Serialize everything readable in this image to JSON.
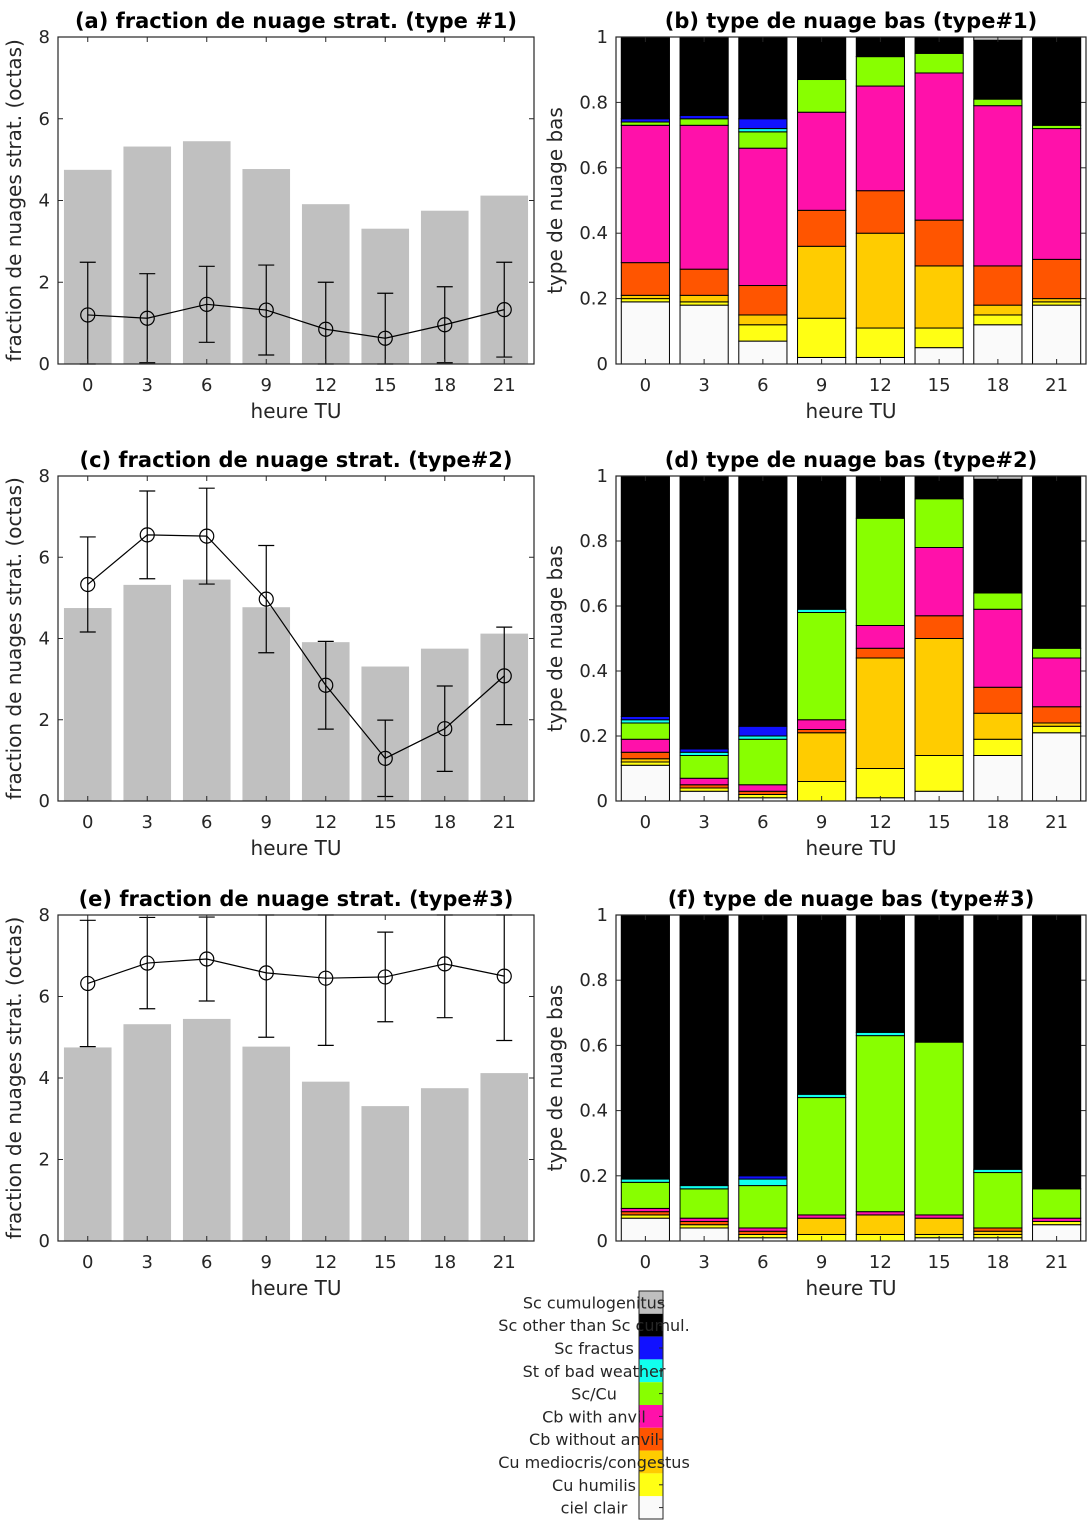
{
  "colors": {
    "bar_gray": "#c0c0c0",
    "line": "#000000",
    "classes": [
      "#fafafa",
      "#ffff14",
      "#ffcc00",
      "#ff5500",
      "#ff11aa",
      "#88ff00",
      "#11ffee",
      "#1111ff",
      "#000000",
      "#bfbfbf"
    ]
  },
  "legend": {
    "labels": [
      "ciel clair",
      "Cu humilis",
      "Cu mediocris/congestus",
      "Cb without anvil",
      "Cb with anvil",
      "Sc/Cu",
      "St of bad weather",
      "Sc fractus",
      "Sc other than Sc cumul.",
      "Sc cumulogenitus"
    ]
  },
  "chart_data": [
    {
      "id": "a",
      "type": "bar",
      "title": "(a) fraction de nuage strat. (type #1)",
      "xlabel": "heure TU",
      "ylabel": "fraction de nuages strat. (octas)",
      "ylim": [
        0,
        8
      ],
      "yticks": [
        0,
        2,
        4,
        6,
        8
      ],
      "categories": [
        "0",
        "3",
        "6",
        "9",
        "12",
        "15",
        "18",
        "21"
      ],
      "values": [
        4.75,
        5.32,
        5.45,
        4.77,
        3.91,
        3.31,
        3.75,
        4.12
      ],
      "line": {
        "values": [
          1.2,
          1.12,
          1.46,
          1.32,
          0.85,
          0.63,
          0.96,
          1.33
        ],
        "err": [
          1.29,
          1.09,
          0.93,
          1.1,
          1.15,
          1.1,
          0.93,
          1.16
        ]
      }
    },
    {
      "id": "b",
      "type": "bar",
      "stacked": true,
      "title": "(b) type de nuage bas (type#1)",
      "xlabel": "heure TU",
      "ylabel": "type de nuage bas",
      "ylim": [
        0,
        1
      ],
      "yticks": [
        0,
        0.2,
        0.4,
        0.6,
        0.8,
        1
      ],
      "categories": [
        "0",
        "3",
        "6",
        "9",
        "12",
        "15",
        "18",
        "21"
      ],
      "fractions": [
        [
          0.19,
          0.01,
          0.01,
          0.1,
          0.42,
          0.01,
          0.0,
          0.01,
          0.25,
          0.0
        ],
        [
          0.18,
          0.01,
          0.02,
          0.08,
          0.44,
          0.02,
          0.0,
          0.01,
          0.24,
          0.0
        ],
        [
          0.07,
          0.05,
          0.03,
          0.09,
          0.42,
          0.05,
          0.01,
          0.03,
          0.25,
          0.0
        ],
        [
          0.02,
          0.12,
          0.22,
          0.11,
          0.3,
          0.1,
          0.0,
          0.0,
          0.13,
          0.0
        ],
        [
          0.02,
          0.09,
          0.29,
          0.13,
          0.32,
          0.09,
          0.0,
          0.0,
          0.06,
          0.0
        ],
        [
          0.05,
          0.06,
          0.19,
          0.14,
          0.45,
          0.06,
          0.0,
          0.0,
          0.05,
          0.0
        ],
        [
          0.12,
          0.03,
          0.03,
          0.12,
          0.49,
          0.02,
          0.0,
          0.0,
          0.18,
          0.01
        ],
        [
          0.18,
          0.01,
          0.01,
          0.12,
          0.4,
          0.01,
          0.0,
          0.0,
          0.27,
          0.0
        ]
      ]
    },
    {
      "id": "c",
      "type": "bar",
      "title": "(c) fraction de nuage strat. (type#2)",
      "xlabel": "heure TU",
      "ylabel": "fraction de nuages strat. (octas)",
      "ylim": [
        0,
        8
      ],
      "yticks": [
        0,
        2,
        4,
        6,
        8
      ],
      "categories": [
        "0",
        "3",
        "6",
        "9",
        "12",
        "15",
        "18",
        "21"
      ],
      "values": [
        4.75,
        5.32,
        5.45,
        4.77,
        3.91,
        3.31,
        3.75,
        4.12
      ],
      "line": {
        "values": [
          5.33,
          6.55,
          6.52,
          4.97,
          2.85,
          1.05,
          1.78,
          3.08
        ],
        "err": [
          1.17,
          1.08,
          1.18,
          1.32,
          1.08,
          0.94,
          1.05,
          1.2
        ]
      }
    },
    {
      "id": "d",
      "type": "bar",
      "stacked": true,
      "title": "(d) type de nuage bas (type#2)",
      "xlabel": "heure TU",
      "ylabel": "type de nuage bas",
      "ylim": [
        0,
        1
      ],
      "yticks": [
        0,
        0.2,
        0.4,
        0.6,
        0.8,
        1
      ],
      "categories": [
        "0",
        "3",
        "6",
        "9",
        "12",
        "15",
        "18",
        "21"
      ],
      "fractions": [
        [
          0.11,
          0.01,
          0.01,
          0.02,
          0.04,
          0.05,
          0.01,
          0.01,
          0.74,
          0.0
        ],
        [
          0.03,
          0.01,
          0.0,
          0.01,
          0.02,
          0.07,
          0.01,
          0.01,
          0.84,
          0.0
        ],
        [
          0.01,
          0.01,
          0.0,
          0.01,
          0.02,
          0.14,
          0.01,
          0.03,
          0.77,
          0.0
        ],
        [
          0.0,
          0.06,
          0.15,
          0.01,
          0.03,
          0.33,
          0.01,
          0.0,
          0.41,
          0.0
        ],
        [
          0.01,
          0.09,
          0.34,
          0.03,
          0.07,
          0.33,
          0.0,
          0.0,
          0.13,
          0.0
        ],
        [
          0.03,
          0.11,
          0.36,
          0.07,
          0.21,
          0.15,
          0.0,
          0.0,
          0.07,
          0.0
        ],
        [
          0.14,
          0.05,
          0.08,
          0.08,
          0.24,
          0.05,
          0.0,
          0.0,
          0.35,
          0.01
        ],
        [
          0.21,
          0.02,
          0.01,
          0.05,
          0.15,
          0.03,
          0.0,
          0.0,
          0.53,
          0.0
        ]
      ]
    },
    {
      "id": "e",
      "type": "bar",
      "title": "(e) fraction de nuage strat. (type#3)",
      "xlabel": "heure TU",
      "ylabel": "fraction de nuages strat. (octas)",
      "ylim": [
        0,
        8
      ],
      "yticks": [
        0,
        2,
        4,
        6,
        8
      ],
      "categories": [
        "0",
        "3",
        "6",
        "9",
        "12",
        "15",
        "18",
        "21"
      ],
      "values": [
        4.75,
        5.32,
        5.45,
        4.77,
        3.91,
        3.31,
        3.75,
        4.12
      ],
      "line": {
        "values": [
          6.32,
          6.82,
          6.92,
          6.58,
          6.45,
          6.48,
          6.8,
          6.5
        ],
        "err": [
          1.55,
          1.12,
          1.03,
          1.58,
          1.65,
          1.1,
          1.32,
          1.58
        ]
      }
    },
    {
      "id": "f",
      "type": "bar",
      "stacked": true,
      "title": "(f) type de nuage bas (type#3)",
      "xlabel": "heure TU",
      "ylabel": "type de nuage bas",
      "ylim": [
        0,
        1
      ],
      "yticks": [
        0,
        0.2,
        0.4,
        0.6,
        0.8,
        1
      ],
      "categories": [
        "0",
        "3",
        "6",
        "9",
        "12",
        "15",
        "18",
        "21"
      ],
      "fractions": [
        [
          0.07,
          0.01,
          0.0,
          0.01,
          0.01,
          0.08,
          0.01,
          0.0,
          0.81,
          0.0
        ],
        [
          0.04,
          0.01,
          0.0,
          0.01,
          0.01,
          0.09,
          0.01,
          0.0,
          0.83,
          0.0
        ],
        [
          0.01,
          0.01,
          0.0,
          0.01,
          0.01,
          0.13,
          0.02,
          0.01,
          0.8,
          0.0
        ],
        [
          0.0,
          0.02,
          0.05,
          0.0,
          0.01,
          0.36,
          0.01,
          0.0,
          0.55,
          0.0
        ],
        [
          0.0,
          0.02,
          0.06,
          0.0,
          0.01,
          0.54,
          0.01,
          0.0,
          0.36,
          0.0
        ],
        [
          0.01,
          0.01,
          0.05,
          0.0,
          0.01,
          0.53,
          0.0,
          0.0,
          0.39,
          0.0
        ],
        [
          0.01,
          0.01,
          0.01,
          0.01,
          0.0,
          0.17,
          0.01,
          0.0,
          0.78,
          0.0
        ],
        [
          0.05,
          0.01,
          0.0,
          0.0,
          0.01,
          0.09,
          0.0,
          0.0,
          0.84,
          0.0
        ]
      ]
    }
  ]
}
